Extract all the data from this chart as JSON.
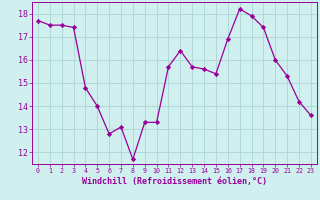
{
  "x": [
    0,
    1,
    2,
    3,
    4,
    5,
    6,
    7,
    8,
    9,
    10,
    11,
    12,
    13,
    14,
    15,
    16,
    17,
    18,
    19,
    20,
    21,
    22,
    23
  ],
  "y": [
    17.7,
    17.5,
    17.5,
    17.4,
    14.8,
    14.0,
    12.8,
    13.1,
    11.7,
    13.3,
    13.3,
    15.7,
    16.4,
    15.7,
    15.6,
    15.4,
    16.9,
    18.2,
    17.9,
    17.4,
    16.0,
    15.3,
    14.2,
    13.6
  ],
  "line_color": "#990099",
  "marker": "D",
  "marker_size": 2.2,
  "bg_color": "#d0f0f0",
  "grid_color": "#b0d8d8",
  "xlabel": "Windchill (Refroidissement éolien,°C)",
  "xlabel_color": "#990099",
  "tick_color": "#990099",
  "ylim": [
    11.5,
    18.5
  ],
  "xlim": [
    -0.5,
    23.5
  ],
  "yticks": [
    12,
    13,
    14,
    15,
    16,
    17,
    18
  ],
  "xticks": [
    0,
    1,
    2,
    3,
    4,
    5,
    6,
    7,
    8,
    9,
    10,
    11,
    12,
    13,
    14,
    15,
    16,
    17,
    18,
    19,
    20,
    21,
    22,
    23
  ],
  "xtick_labels": [
    "0",
    "1",
    "2",
    "3",
    "4",
    "5",
    "6",
    "7",
    "8",
    "9",
    "10",
    "11",
    "12",
    "13",
    "14",
    "15",
    "16",
    "17",
    "18",
    "19",
    "20",
    "21",
    "22",
    "23"
  ],
  "xlabel_fontsize": 6.0,
  "xtick_fontsize": 4.8,
  "ytick_fontsize": 6.0
}
